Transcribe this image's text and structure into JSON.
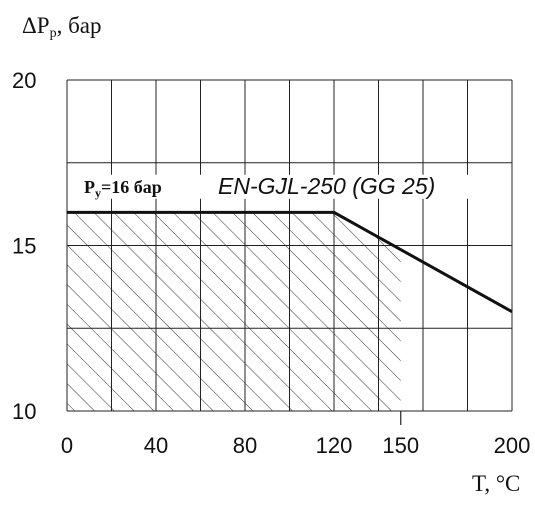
{
  "chart_data": {
    "type": "line",
    "ylabel_main": "ΔP",
    "ylabel_sub": "р",
    "ylabel_unit": ", бар",
    "xlabel": "T, °C",
    "xlim": [
      0,
      200
    ],
    "ylim": [
      10,
      20
    ],
    "x_ticks": [
      "0",
      "40",
      "80",
      "120",
      "150",
      "200"
    ],
    "y_ticks": [
      "20",
      "15",
      "10"
    ],
    "pressure_label_main": "P",
    "pressure_label_sub": "y",
    "pressure_label_value": "=16 бар",
    "material_label": "EN-GJL-250 (GG 25)",
    "series": [
      {
        "x": [
          0,
          120,
          200
        ],
        "y": [
          16,
          16,
          13
        ]
      }
    ],
    "shaded_region": {
      "x": [
        0,
        150
      ],
      "y_min": 10
    },
    "grid": true,
    "colors": {
      "line": "#111111",
      "grid": "#222222",
      "hatch": "#333333"
    }
  }
}
